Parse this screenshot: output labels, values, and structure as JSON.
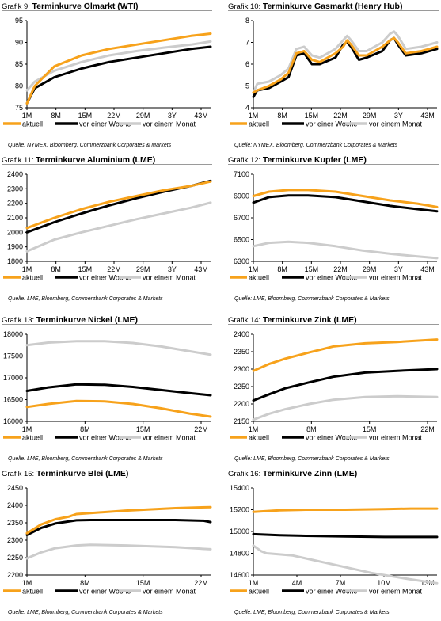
{
  "colors": {
    "aktuell": "#f7a21b",
    "woche": "#000000",
    "monat": "#cccccc"
  },
  "charts": [
    {
      "label": "Grafik 9:",
      "title": "Terminkurve Ölmarkt (WTI)",
      "source": "Quelle: NYMEX, Bloomberg, Commerzbank Corporates & Markets",
      "chart_data": {
        "type": "line",
        "x_labels": [
          "1M",
          "8M",
          "15M",
          "22M",
          "29M",
          "3Y",
          "43M"
        ],
        "ylim": [
          75,
          95
        ],
        "yticks": [
          "75",
          "80",
          "85",
          "90",
          "95"
        ],
        "x_count": 48,
        "series": [
          {
            "name": "aktuell",
            "key": "aktuell",
            "x": [
              1,
              3,
              8,
              15,
              22,
              29,
              36,
              43,
              48
            ],
            "values": [
              76,
              80,
              84.5,
              87,
              88.5,
              89.5,
              90.5,
              91.5,
              92
            ]
          },
          {
            "name": "vor einer Woche",
            "key": "woche",
            "x": [
              1,
              3,
              8,
              15,
              22,
              29,
              36,
              43,
              48
            ],
            "values": [
              76,
              79.5,
              82,
              84,
              85.5,
              86.5,
              87.5,
              88.5,
              89
            ]
          },
          {
            "name": "vor einem Monat",
            "key": "monat",
            "x": [
              1,
              3,
              8,
              15,
              22,
              29,
              36,
              43,
              48
            ],
            "values": [
              79,
              81,
              83.5,
              85.5,
              87,
              88,
              88.8,
              89.5,
              90.2
            ]
          }
        ]
      }
    },
    {
      "label": "Grafik 10:",
      "title": "Terminkurve Gasmarkt (Henry Hub)",
      "source": "Quelle: NYMEX, Bloomberg, Commerzbank Corporates & Markets",
      "chart_data": {
        "type": "line",
        "x_labels": [
          "1M",
          "8M",
          "15M",
          "22M",
          "29M",
          "3Y",
          "43M"
        ],
        "ylim": [
          4,
          8
        ],
        "yticks": [
          "4",
          "5",
          "6",
          "7",
          "8"
        ],
        "x_count": 48,
        "series": [
          {
            "name": "aktuell",
            "key": "aktuell",
            "x": [
              1,
              2,
              5,
              8,
              10,
              12,
              14,
              16,
              18,
              22,
              24,
              25,
              26,
              28,
              30,
              34,
              36,
              37,
              38,
              40,
              44,
              46,
              48
            ],
            "values": [
              4.7,
              4.8,
              5.0,
              5.3,
              5.6,
              6.5,
              6.6,
              6.2,
              6.1,
              6.5,
              6.8,
              7.1,
              6.9,
              6.4,
              6.4,
              6.8,
              7.1,
              7.2,
              7.0,
              6.5,
              6.6,
              6.7,
              6.8
            ]
          },
          {
            "name": "vor einer Woche",
            "key": "woche",
            "x": [
              1,
              2,
              5,
              8,
              10,
              12,
              14,
              16,
              18,
              22,
              24,
              25,
              26,
              28,
              30,
              34,
              36,
              37,
              38,
              40,
              44,
              46,
              48
            ],
            "values": [
              4.5,
              4.8,
              4.9,
              5.2,
              5.4,
              6.4,
              6.5,
              6.0,
              6.0,
              6.3,
              6.9,
              7.0,
              6.8,
              6.2,
              6.3,
              6.6,
              7.1,
              7.2,
              6.9,
              6.4,
              6.5,
              6.6,
              6.7
            ]
          },
          {
            "name": "vor einem Monat",
            "key": "monat",
            "x": [
              1,
              2,
              5,
              8,
              10,
              12,
              14,
              16,
              18,
              22,
              24,
              25,
              26,
              28,
              30,
              34,
              36,
              37,
              38,
              40,
              44,
              46,
              48
            ],
            "values": [
              4.7,
              5.1,
              5.2,
              5.5,
              5.8,
              6.7,
              6.8,
              6.4,
              6.3,
              6.7,
              7.1,
              7.3,
              7.1,
              6.6,
              6.6,
              7.0,
              7.4,
              7.5,
              7.3,
              6.7,
              6.8,
              6.9,
              7.0
            ]
          }
        ]
      }
    },
    {
      "label": "Grafik 11:",
      "title": "Terminkurve Aluminium (LME)",
      "source": "Quelle: LME, Bloomberg, Commerzbank Corporates & Markets",
      "chart_data": {
        "type": "line",
        "x_labels": [
          "1M",
          "8M",
          "15M",
          "22M",
          "29M",
          "3Y",
          "43M"
        ],
        "ylim": [
          1800,
          2400
        ],
        "yticks": [
          "1800",
          "1900",
          "2000",
          "2100",
          "2200",
          "2300",
          "2400"
        ],
        "x_count": 48,
        "series": [
          {
            "name": "aktuell",
            "key": "aktuell",
            "x": [
              1,
              8,
              15,
              22,
              29,
              36,
              43,
              48
            ],
            "values": [
              2030,
              2100,
              2160,
              2210,
              2250,
              2290,
              2320,
              2350
            ]
          },
          {
            "name": "vor einer Woche",
            "key": "woche",
            "x": [
              1,
              8,
              15,
              22,
              29,
              36,
              43,
              48
            ],
            "values": [
              2000,
              2070,
              2130,
              2185,
              2235,
              2280,
              2320,
              2355
            ]
          },
          {
            "name": "vor einem Monat",
            "key": "monat",
            "x": [
              1,
              8,
              15,
              22,
              29,
              36,
              43,
              48
            ],
            "values": [
              1870,
              1950,
              2000,
              2045,
              2090,
              2130,
              2170,
              2205
            ]
          }
        ]
      }
    },
    {
      "label": "Grafik 12:",
      "title": "Terminkurve Kupfer (LME)",
      "source": "Quelle: LME, Bloomberg, Commerzbank Corporates & Markets",
      "chart_data": {
        "type": "line",
        "x_labels": [
          "1M",
          "8M",
          "15M",
          "22M",
          "29M",
          "3Y",
          "43M"
        ],
        "ylim": [
          6300,
          7100
        ],
        "yticks": [
          "6300",
          "6500",
          "6700",
          "6900",
          "7100"
        ],
        "x_count": 48,
        "series": [
          {
            "name": "aktuell",
            "key": "aktuell",
            "x": [
              1,
              5,
              10,
              15,
              22,
              29,
              36,
              43,
              48
            ],
            "values": [
              6900,
              6940,
              6955,
              6955,
              6940,
              6900,
              6860,
              6830,
              6800
            ]
          },
          {
            "name": "vor einer Woche",
            "key": "woche",
            "x": [
              1,
              5,
              10,
              15,
              22,
              29,
              36,
              43,
              48
            ],
            "values": [
              6840,
              6890,
              6905,
              6905,
              6890,
              6850,
              6810,
              6780,
              6760
            ]
          },
          {
            "name": "vor einem Monat",
            "key": "monat",
            "x": [
              1,
              5,
              10,
              15,
              22,
              29,
              36,
              43,
              48
            ],
            "values": [
              6440,
              6470,
              6480,
              6470,
              6440,
              6400,
              6370,
              6345,
              6330
            ]
          }
        ]
      }
    },
    {
      "label": "Grafik 13:",
      "title": "Terminkurve Nickel (LME)",
      "source": "Quelle: LME, Bloomberg, Commerzbank Corporates & Markets",
      "chart_data": {
        "type": "line",
        "x_labels": [
          "1M",
          "8M",
          "15M",
          "22M"
        ],
        "ylim": [
          16000,
          18000
        ],
        "yticks": [
          "16000",
          "16500",
          "17000",
          "17500",
          "18000"
        ],
        "x_count": 27,
        "series": [
          {
            "name": "aktuell",
            "key": "aktuell",
            "x": [
              1,
              4,
              8,
              12,
              16,
              20,
              24,
              27
            ],
            "values": [
              16330,
              16400,
              16470,
              16460,
              16400,
              16300,
              16180,
              16110
            ]
          },
          {
            "name": "vor einer Woche",
            "key": "woche",
            "x": [
              1,
              4,
              8,
              12,
              16,
              20,
              24,
              27
            ],
            "values": [
              16700,
              16780,
              16850,
              16840,
              16790,
              16720,
              16650,
              16600
            ]
          },
          {
            "name": "vor einem Monat",
            "key": "monat",
            "x": [
              1,
              4,
              8,
              12,
              16,
              20,
              24,
              27
            ],
            "values": [
              17750,
              17810,
              17840,
              17840,
              17800,
              17720,
              17610,
              17530
            ]
          }
        ]
      }
    },
    {
      "label": "Grafik 14:",
      "title": "Terminkurve Zink (LME)",
      "source": "Quelle: LME, Bloomberg, Commerzbank Corporates & Markets",
      "chart_data": {
        "type": "line",
        "x_labels": [
          "1M",
          "8M",
          "15M",
          "22M"
        ],
        "ylim": [
          2150,
          2400
        ],
        "yticks": [
          "2150",
          "2200",
          "2250",
          "2300",
          "2350",
          "2400"
        ],
        "x_count": 24,
        "series": [
          {
            "name": "aktuell",
            "key": "aktuell",
            "x": [
              1,
              3,
              5,
              8,
              11,
              15,
              19,
              24
            ],
            "values": [
              2295,
              2315,
              2330,
              2348,
              2365,
              2374,
              2378,
              2385
            ]
          },
          {
            "name": "vor einer Woche",
            "key": "woche",
            "x": [
              1,
              3,
              5,
              8,
              11,
              15,
              19,
              24
            ],
            "values": [
              2210,
              2228,
              2245,
              2262,
              2278,
              2290,
              2295,
              2300
            ]
          },
          {
            "name": "vor einem Monat",
            "key": "monat",
            "x": [
              1,
              3,
              5,
              8,
              11,
              15,
              19,
              24
            ],
            "values": [
              2155,
              2172,
              2185,
              2200,
              2212,
              2220,
              2222,
              2220
            ]
          }
        ]
      }
    },
    {
      "label": "Grafik 15:",
      "title": "Terminkurve Blei (LME)",
      "source": "Quelle: LME, Bloomberg, Commerzbank Corporates & Markets",
      "chart_data": {
        "type": "line",
        "x_labels": [
          "1M",
          "8M",
          "15M",
          "22M"
        ],
        "ylim": [
          2200,
          2450
        ],
        "yticks": [
          "2200",
          "2250",
          "2300",
          "2350",
          "2400",
          "2450"
        ],
        "x_count": 27,
        "series": [
          {
            "name": "aktuell",
            "key": "aktuell",
            "x": [
              1,
              3,
              5,
              7,
              8,
              10,
              15,
              22,
              27
            ],
            "values": [
              2320,
              2345,
              2360,
              2368,
              2375,
              2378,
              2385,
              2392,
              2395
            ]
          },
          {
            "name": "vor einer Woche",
            "key": "woche",
            "x": [
              1,
              3,
              5,
              8,
              10,
              15,
              22,
              26,
              27
            ],
            "values": [
              2315,
              2335,
              2348,
              2357,
              2358,
              2358,
              2358,
              2356,
              2352
            ]
          },
          {
            "name": "vor einem Monat",
            "key": "monat",
            "x": [
              1,
              3,
              5,
              8,
              10,
              15,
              22,
              27
            ],
            "values": [
              2248,
              2265,
              2277,
              2285,
              2287,
              2285,
              2280,
              2274
            ]
          }
        ]
      }
    },
    {
      "label": "Grafik 16:",
      "title": "Terminkurve Zinn (LME)",
      "source": "Quelle: LME, Bloomberg, Commerzbank Corporates & Markets",
      "chart_data": {
        "type": "line",
        "x_labels": [
          "1M",
          "4M",
          "7M",
          "10M",
          "13M"
        ],
        "ylim": [
          14600,
          15400
        ],
        "yticks": [
          "14600",
          "14800",
          "15000",
          "15200",
          "15400"
        ],
        "x_count": 15,
        "series": [
          {
            "name": "aktuell",
            "key": "aktuell",
            "x": [
              1,
              3,
              5,
              8,
              11,
              13,
              15
            ],
            "values": [
              15180,
              15195,
              15200,
              15200,
              15205,
              15210,
              15210
            ]
          },
          {
            "name": "vor einer Woche",
            "key": "woche",
            "x": [
              1,
              3,
              5,
              8,
              11,
              13,
              15
            ],
            "values": [
              14975,
              14965,
              14960,
              14955,
              14950,
              14950,
              14950
            ]
          },
          {
            "name": "vor einem Monat",
            "key": "monat",
            "x": [
              1,
              1.6,
              2,
              4,
              7,
              10,
              13,
              15
            ],
            "values": [
              14870,
              14820,
              14800,
              14780,
              14700,
              14620,
              14560,
              14525
            ]
          }
        ]
      }
    }
  ]
}
